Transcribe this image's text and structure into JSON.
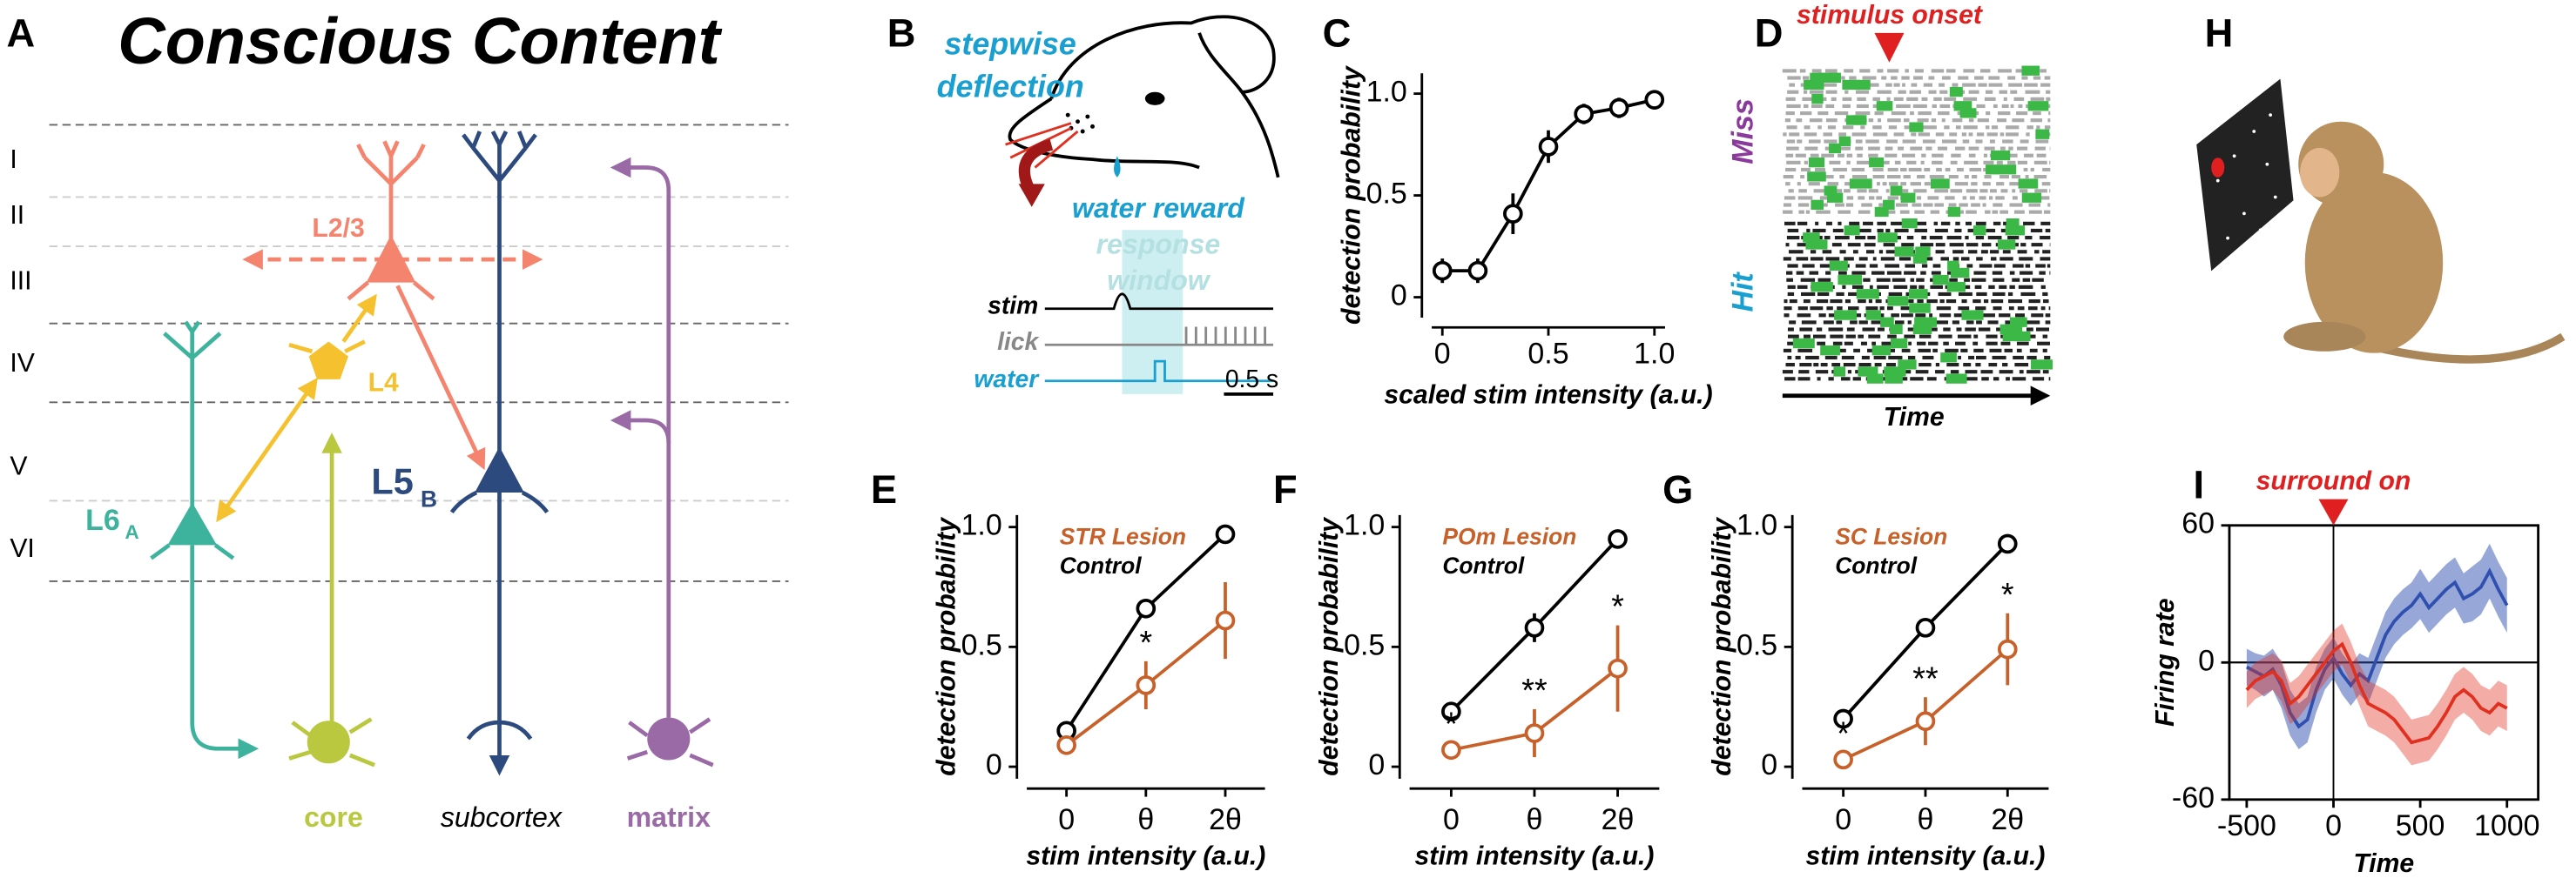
{
  "panel_labels": [
    "A",
    "B",
    "C",
    "D",
    "E",
    "F",
    "G",
    "H",
    "I"
  ],
  "panel_a": {
    "title": "Conscious Content",
    "layers": [
      "I",
      "II",
      "III",
      "IV",
      "V",
      "VI"
    ],
    "l23": "L2/3",
    "l4": "L4",
    "l5": "L5",
    "l5_sub": "B",
    "l6": "L6",
    "l6_sub": "A",
    "core": "core",
    "subcortex": "subcortex",
    "matrix": "matrix"
  },
  "panel_b": {
    "stimulus": [
      "stepwise",
      "deflection"
    ],
    "reward": "water reward",
    "window": [
      "response",
      "window"
    ],
    "traces": [
      "stim",
      "lick",
      "water"
    ],
    "scale": "0.5 s"
  },
  "panel_d": {
    "onset": "stimulus onset",
    "miss": "Miss",
    "hit": "Hit",
    "time": "Time"
  },
  "chart_data": [
    {
      "type": "line",
      "xlabel": "scaled stim intensity (a.u.)",
      "ylabel": "detection probability",
      "x": [
        0,
        0.167,
        0.333,
        0.5,
        0.667,
        0.833,
        1.0
      ],
      "xlim": [
        -0.05,
        1.05
      ],
      "xticks": [
        0,
        0.5,
        {
          "value": 1,
          "label": "1.0"
        }
      ],
      "ylim": [
        -0.1,
        1.1
      ],
      "yticks": [
        0,
        0.5,
        {
          "value": 1,
          "label": "1.0"
        }
      ],
      "series": [
        {
          "color": "#000000",
          "values": [
            0.13,
            0.13,
            0.41,
            0.74,
            0.9,
            0.93,
            0.97
          ],
          "errors": [
            0.06,
            0.06,
            0.1,
            0.08,
            0.05,
            0.05,
            0.03
          ]
        }
      ]
    },
    {
      "type": "line",
      "xlabel": "stim intensity (a.u.)",
      "ylabel": "detection probability",
      "categories": [
        "0",
        "θ",
        "2θ"
      ],
      "ylim": [
        -0.05,
        1.05
      ],
      "yticks": [
        0,
        0.5,
        {
          "value": 1,
          "label": "1.0"
        }
      ],
      "legend": "upper left",
      "annotations": [
        "*"
      ],
      "series": [
        {
          "name": "Control",
          "color": "#000000",
          "values": [
            0.15,
            0.66,
            0.97
          ],
          "errors": [
            0.02,
            0.03,
            0.02
          ]
        },
        {
          "name": "STR Lesion",
          "color": "#c8602a",
          "values": [
            0.09,
            0.34,
            0.61
          ],
          "errors": [
            0.03,
            0.1,
            0.16
          ]
        }
      ]
    },
    {
      "type": "line",
      "xlabel": "stim intensity (a.u.)",
      "ylabel": "detection probability",
      "categories": [
        "0",
        "θ",
        "2θ"
      ],
      "ylim": [
        -0.05,
        1.05
      ],
      "yticks": [
        0,
        0.5,
        {
          "value": 1,
          "label": "1.0"
        }
      ],
      "legend": "upper left",
      "annotations": [
        "*",
        "**",
        "*"
      ],
      "series": [
        {
          "name": "Control",
          "color": "#000000",
          "values": [
            0.23,
            0.58,
            0.95
          ],
          "errors": [
            0.02,
            0.06,
            0.02
          ]
        },
        {
          "name": "POm Lesion",
          "color": "#c8602a",
          "values": [
            0.07,
            0.14,
            0.41
          ],
          "errors": [
            0.03,
            0.1,
            0.18
          ]
        }
      ]
    },
    {
      "type": "line",
      "xlabel": "stim intensity (a.u.)",
      "ylabel": "detection probability",
      "categories": [
        "0",
        "θ",
        "2θ"
      ],
      "ylim": [
        -0.05,
        1.05
      ],
      "yticks": [
        0,
        0.5,
        {
          "value": 1,
          "label": "1.0"
        }
      ],
      "legend": "upper left",
      "annotations": [
        "*",
        "**",
        "*"
      ],
      "series": [
        {
          "name": "Control",
          "color": "#000000",
          "values": [
            0.2,
            0.58,
            0.93
          ],
          "errors": [
            0.04,
            0.03,
            0.02
          ]
        },
        {
          "name": "SC Lesion",
          "color": "#c8602a",
          "values": [
            0.03,
            0.19,
            0.49
          ],
          "errors": [
            0.03,
            0.1,
            0.15
          ]
        }
      ]
    },
    {
      "type": "band",
      "xlabel": "Time",
      "ylabel": "Firing rate",
      "annotations": [
        "surround on"
      ],
      "frame": true,
      "x": [
        -500,
        -450,
        -400,
        -350,
        -300,
        -250,
        -200,
        -150,
        -100,
        -50,
        0,
        50,
        100,
        150,
        200,
        250,
        300,
        350,
        400,
        450,
        500,
        550,
        600,
        650,
        700,
        750,
        800,
        850,
        900,
        950,
        1000
      ],
      "xlim": [
        -600,
        1180
      ],
      "xticks": [
        -500,
        0,
        500,
        1000
      ],
      "ylim": [
        -60,
        60
      ],
      "yticks": [
        60,
        0,
        -60
      ],
      "series": [
        {
          "color": "#3050b0",
          "values": [
            -2,
            -4,
            -6,
            -3,
            -10,
            -22,
            -28,
            -25,
            -12,
            -3,
            2,
            -5,
            -10,
            -5,
            -8,
            2,
            12,
            18,
            22,
            25,
            30,
            24,
            28,
            32,
            35,
            28,
            30,
            33,
            40,
            32,
            25
          ],
          "errors": [
            8,
            8,
            9,
            9,
            10,
            10,
            10,
            10,
            10,
            9,
            9,
            9,
            9,
            9,
            10,
            10,
            10,
            10,
            10,
            10,
            11,
            11,
            11,
            11,
            11,
            11,
            12,
            12,
            12,
            12,
            12
          ]
        },
        {
          "color": "#e03020",
          "values": [
            -12,
            -8,
            -6,
            -4,
            -8,
            -18,
            -15,
            -10,
            -5,
            0,
            5,
            8,
            0,
            -10,
            -18,
            -20,
            -22,
            -25,
            -30,
            -35,
            -34,
            -33,
            -28,
            -22,
            -15,
            -12,
            -15,
            -20,
            -22,
            -18,
            -20
          ],
          "errors": [
            8,
            8,
            8,
            8,
            9,
            9,
            9,
            9,
            9,
            9,
            9,
            9,
            9,
            9,
            10,
            10,
            10,
            10,
            10,
            10,
            10,
            10,
            10,
            10,
            10,
            10,
            10,
            10,
            10,
            10,
            10
          ]
        }
      ]
    }
  ]
}
